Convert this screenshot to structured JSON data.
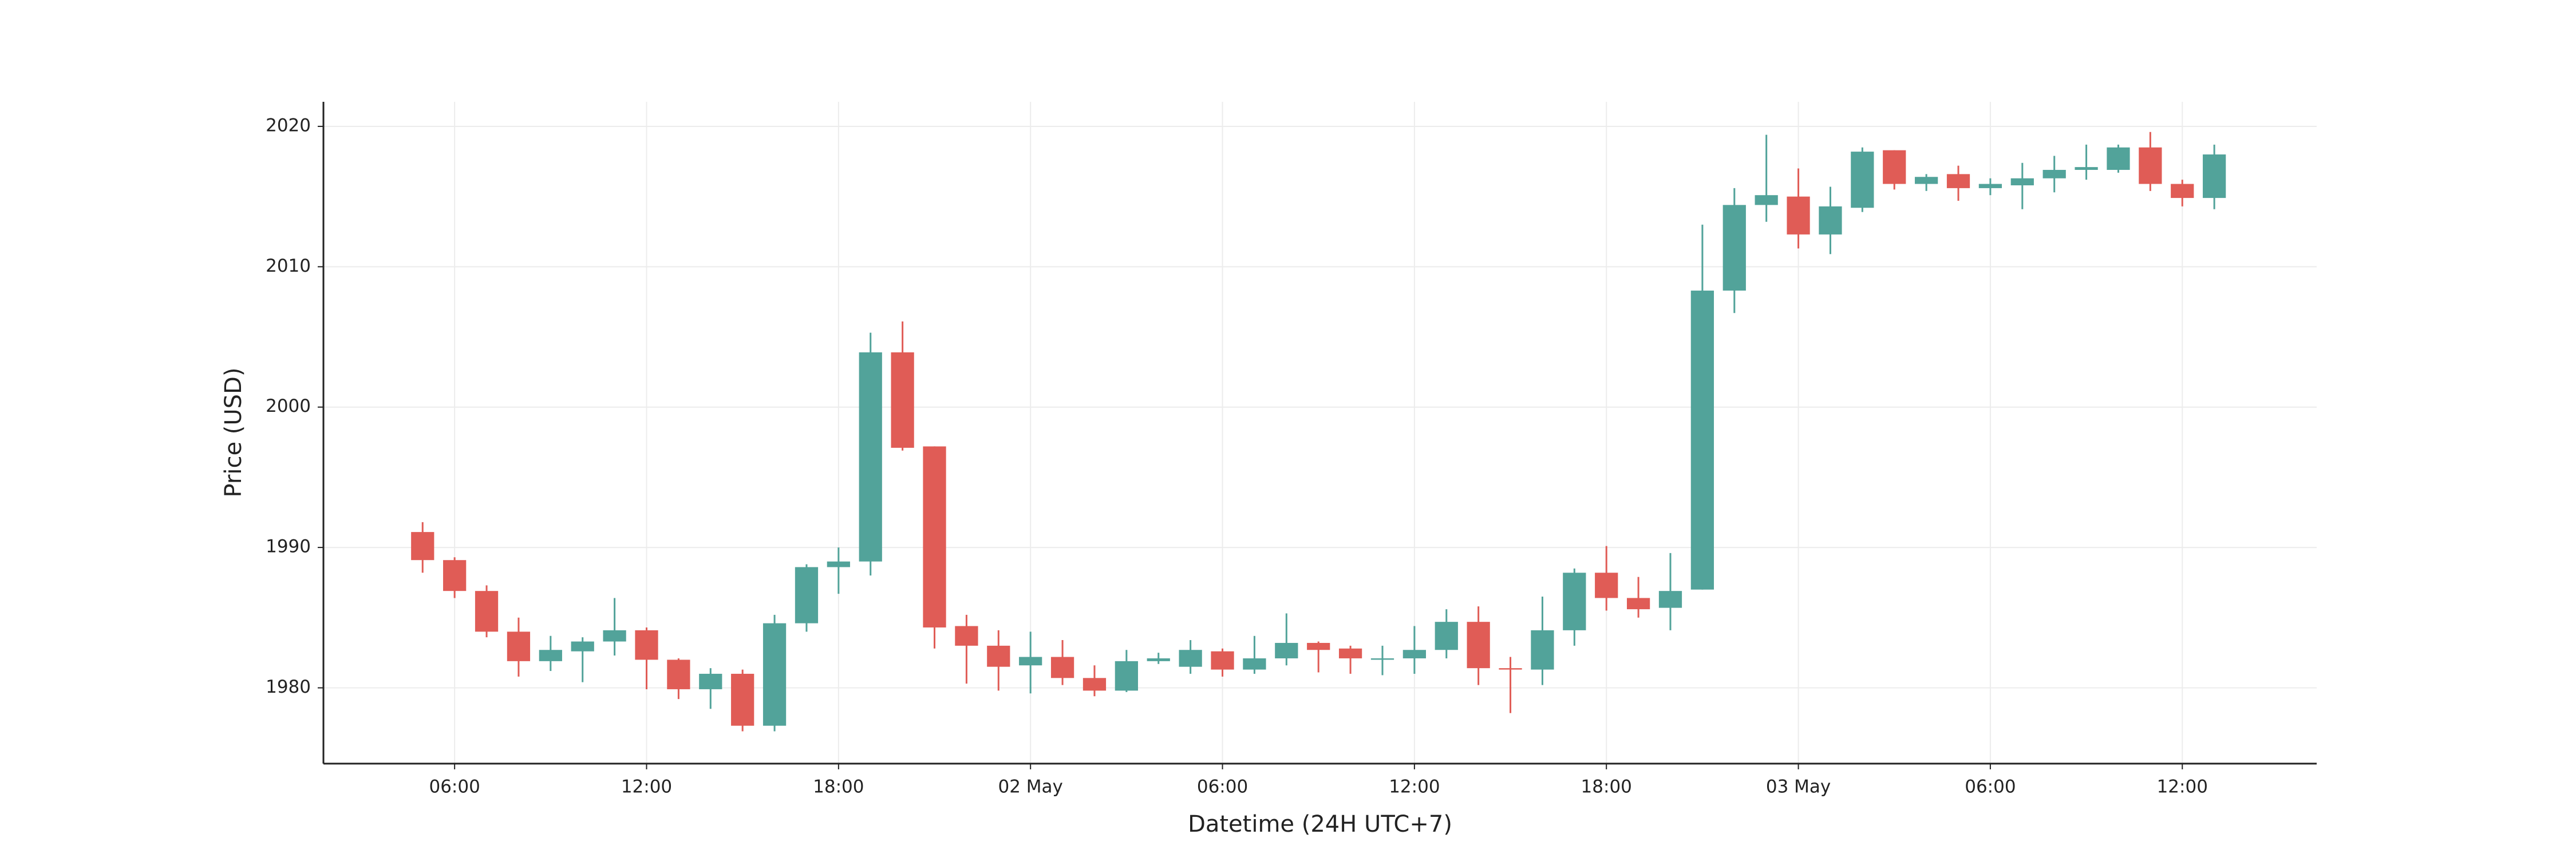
{
  "chart_data": {
    "type": "candlestick",
    "x_label": "Datetime (24H UTC+7)",
    "y_label": "Price (USD)",
    "x": [
      5,
      6,
      7,
      8,
      9,
      10,
      11,
      12,
      13,
      14,
      15,
      16,
      17,
      18,
      19,
      20,
      21,
      22,
      23,
      24,
      25,
      26,
      27,
      28,
      29,
      30,
      31,
      32,
      33,
      34,
      35,
      36,
      37,
      38,
      39,
      40,
      41,
      42,
      43,
      44,
      45,
      46,
      47,
      48,
      49,
      50,
      51,
      52,
      53,
      54,
      55,
      56,
      57,
      58,
      59,
      60,
      61
    ],
    "open": [
      1991.1,
      1989.1,
      1986.9,
      1984.0,
      1981.9,
      1982.6,
      1983.3,
      1984.1,
      1982.0,
      1979.9,
      1981.0,
      1977.3,
      1984.6,
      1988.6,
      1989.0,
      2003.9,
      1997.2,
      1984.4,
      1983.0,
      1981.6,
      1982.2,
      1980.7,
      1979.8,
      1981.9,
      1981.5,
      1982.6,
      1981.3,
      1982.1,
      1983.2,
      1982.8,
      1982.0,
      1982.1,
      1982.7,
      1984.7,
      1981.4,
      1981.3,
      1984.1,
      1988.2,
      1986.4,
      1985.7,
      1987.0,
      2008.3,
      2014.4,
      2015.0,
      2012.3,
      2014.2,
      2018.3,
      2015.9,
      2016.6,
      2015.6,
      2015.8,
      2016.3,
      2016.9,
      2016.9,
      2018.5,
      2015.9,
      2014.9
    ],
    "high": [
      1991.8,
      1989.3,
      1987.3,
      1985.0,
      1983.7,
      1983.6,
      1986.4,
      1984.3,
      1982.1,
      1981.4,
      1981.3,
      1985.2,
      1988.8,
      1990.0,
      2005.3,
      2006.1,
      1997.2,
      1985.2,
      1984.1,
      1984.0,
      1983.4,
      1981.6,
      1982.7,
      1982.5,
      1983.4,
      1982.8,
      1983.7,
      1985.3,
      1983.3,
      1983.0,
      1983.0,
      1984.4,
      1985.6,
      1985.8,
      1982.2,
      1986.5,
      1988.5,
      1990.1,
      1987.9,
      1989.6,
      2013.0,
      2015.6,
      2019.4,
      2017.0,
      2015.7,
      2018.5,
      2018.3,
      2016.6,
      2017.2,
      2016.3,
      2017.4,
      2017.9,
      2018.7,
      2018.7,
      2019.6,
      2016.2,
      2018.7
    ],
    "low": [
      1988.2,
      1986.4,
      1983.6,
      1980.8,
      1981.2,
      1980.4,
      1982.3,
      1979.9,
      1979.2,
      1978.5,
      1976.9,
      1976.9,
      1984.0,
      1986.7,
      1988.0,
      1996.9,
      1982.8,
      1980.3,
      1979.8,
      1979.6,
      1980.2,
      1979.4,
      1979.7,
      1981.7,
      1981.0,
      1980.8,
      1981.0,
      1981.6,
      1981.1,
      1981.0,
      1980.9,
      1981.0,
      1982.1,
      1980.2,
      1978.2,
      1980.2,
      1983.0,
      1985.5,
      1985.0,
      1984.1,
      1987.0,
      2006.7,
      2013.2,
      2011.3,
      2010.9,
      2013.9,
      2015.5,
      2015.4,
      2014.7,
      2015.1,
      2014.1,
      2015.3,
      2016.2,
      2016.7,
      2015.4,
      2014.3,
      2014.1
    ],
    "close": [
      1989.1,
      1986.9,
      1984.0,
      1981.9,
      1982.7,
      1983.3,
      1984.1,
      1982.0,
      1979.9,
      1981.0,
      1977.3,
      1984.6,
      1988.6,
      1989.0,
      2003.9,
      1997.1,
      1984.3,
      1983.0,
      1981.5,
      1982.2,
      1980.7,
      1979.8,
      1981.9,
      1982.1,
      1982.7,
      1981.3,
      1982.1,
      1983.2,
      1982.7,
      1982.1,
      1982.1,
      1982.7,
      1984.7,
      1981.4,
      1981.3,
      1984.1,
      1988.2,
      1986.4,
      1985.6,
      1986.9,
      2008.3,
      2014.4,
      2015.1,
      2012.3,
      2014.3,
      2018.2,
      2015.9,
      2016.4,
      2015.6,
      2015.9,
      2016.3,
      2016.9,
      2017.1,
      2018.5,
      2015.9,
      2014.9,
      2018.0
    ],
    "up_color": "#52a39a",
    "down_color": "#e05c56",
    "xlim": [
      1.9,
      64.2
    ],
    "ylim": [
      1974.6,
      2021.75
    ],
    "xticks": [
      {
        "value": 6,
        "label": "06:00"
      },
      {
        "value": 12,
        "label": "12:00"
      },
      {
        "value": 18,
        "label": "18:00"
      },
      {
        "value": 24,
        "label": "02 May"
      },
      {
        "value": 30,
        "label": "06:00"
      },
      {
        "value": 36,
        "label": "12:00"
      },
      {
        "value": 42,
        "label": "18:00"
      },
      {
        "value": 48,
        "label": "03 May"
      },
      {
        "value": 54,
        "label": "06:00"
      },
      {
        "value": 60,
        "label": "12:00"
      }
    ],
    "yticks": [
      1980,
      1990,
      2000,
      2010,
      2020
    ],
    "grid": true
  }
}
